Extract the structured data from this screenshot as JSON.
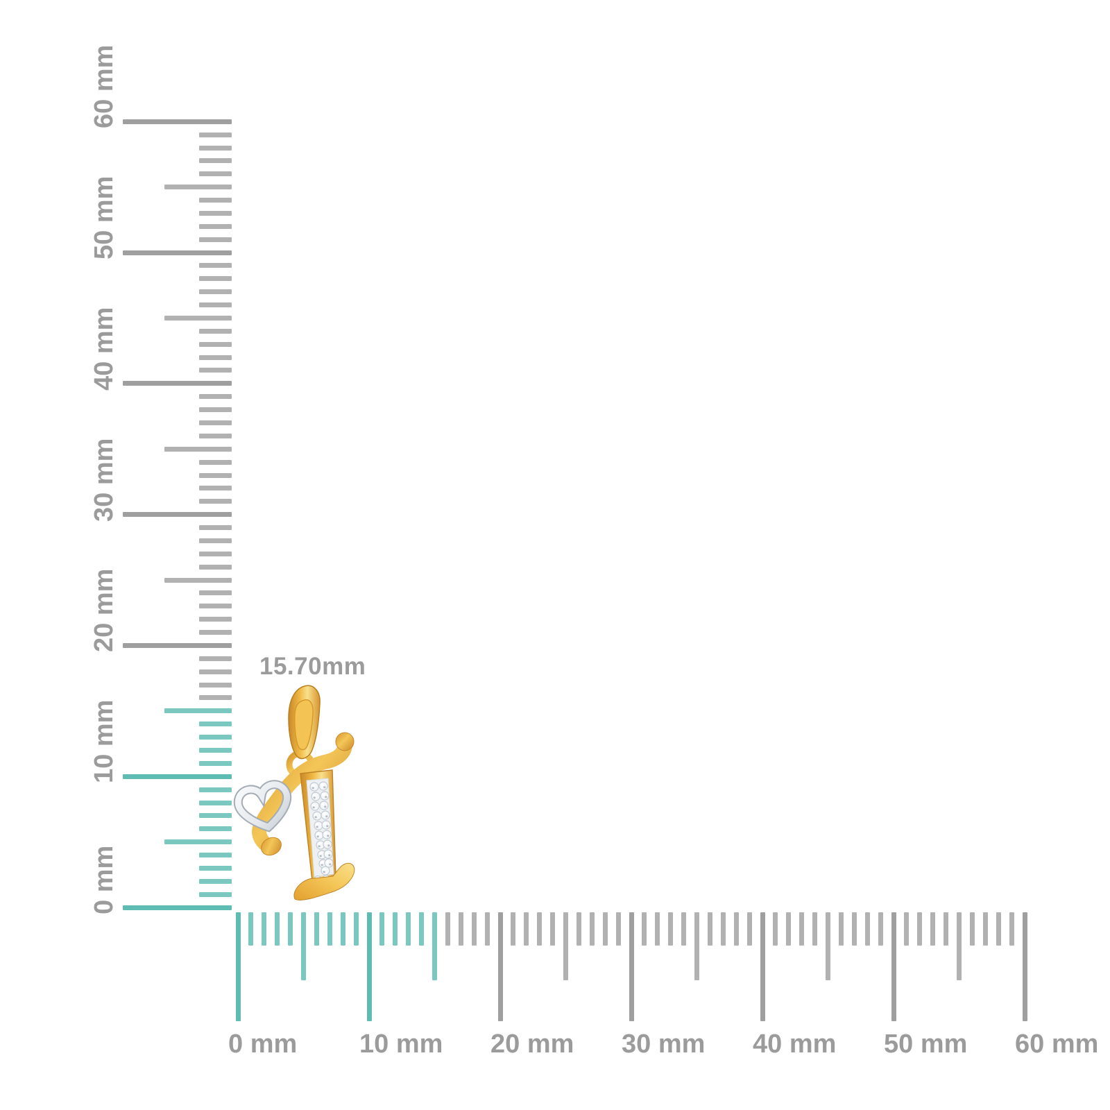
{
  "scene": {
    "background": "#ffffff",
    "description": "Yellow gold script initial 'I' pendant with an open white-gold heart and a diamond-set stem, photographed against millimeter rulers"
  },
  "dimension_label": {
    "text": "15.70mm"
  },
  "pendant": {
    "letter": "I",
    "features": [
      "gold bail",
      "gold ring loop",
      "script swash with ball tips",
      "open white-gold heart",
      "diamond pave stem",
      "italic serif foot"
    ],
    "colors": {
      "gold_light": "#f9e08c",
      "gold_mid": "#f0b843",
      "gold_dark": "#c9882a",
      "gold_deep": "#a87619",
      "white_metal_light": "#f5f7f9",
      "white_metal_dark": "#aab3bb",
      "diamond_field": "#eef1f3",
      "diamond_stroke": "#c2cad1"
    }
  },
  "vertical_ruler": {
    "unit": "mm",
    "min_mm": 0,
    "max_mm": 60,
    "major_every_mm": 10,
    "medium_every_mm": 5,
    "highlight_to_mm": 15.7,
    "labels": [
      "0 mm",
      "10 mm",
      "20 mm",
      "30 mm",
      "40 mm",
      "50 mm",
      "60 mm"
    ]
  },
  "horizontal_ruler": {
    "unit": "mm",
    "min_mm": 0,
    "max_mm": 60,
    "major_every_mm": 10,
    "medium_every_mm": 5,
    "highlight_to_mm": 15.7,
    "labels": [
      "0 mm",
      "10 mm",
      "20 mm",
      "30 mm",
      "40 mm",
      "50 mm",
      "60 mm"
    ]
  },
  "colors": {
    "tick_gray": "#b1b1b1",
    "tick_gray_major": "#9f9f9f",
    "tick_teal": "#7ac8c0",
    "tick_teal_major": "#5fbcb3",
    "label_gray": "#9b9b9b"
  }
}
